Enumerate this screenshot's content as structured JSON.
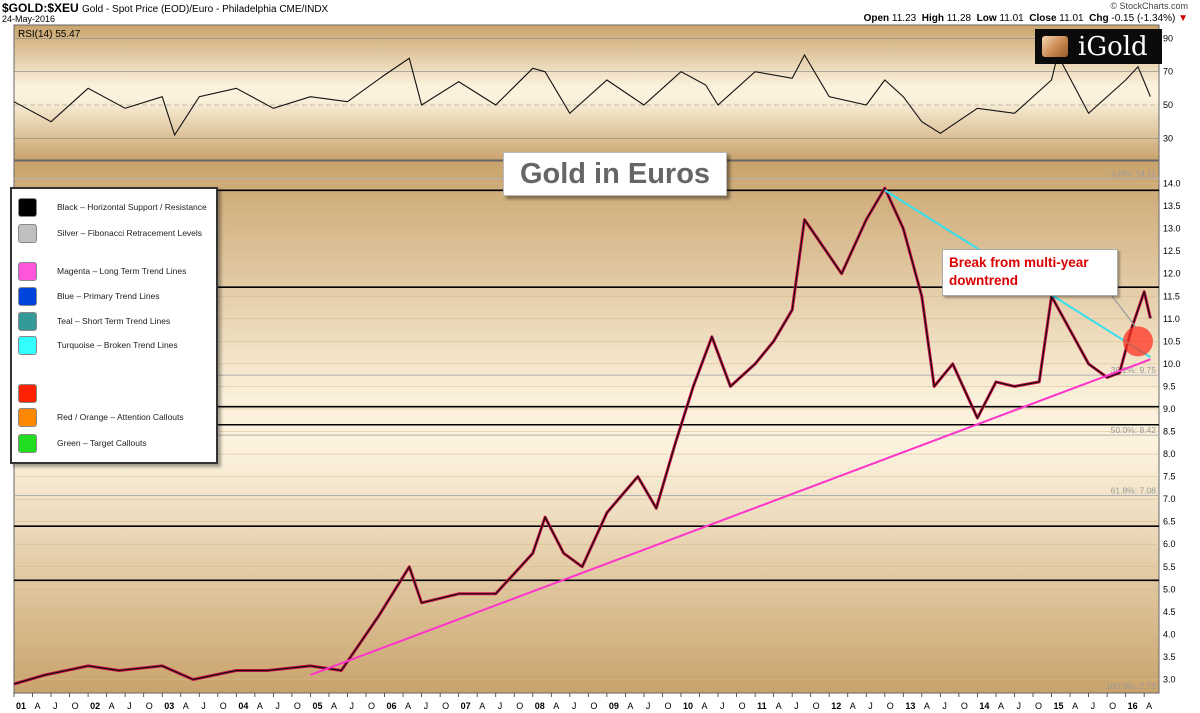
{
  "header": {
    "symbol": "$GOLD:$XEU",
    "description": "Gold - Spot Price (EOD)/Euro - Philadelphia  CME/INDX",
    "date": "24-May-2016",
    "brand": "© StockCharts.com",
    "ohlc": {
      "open_label": "Open",
      "open": "11.23",
      "high_label": "High",
      "high": "11.28",
      "low_label": "Low",
      "low": "11.01",
      "close_label": "Close",
      "close": "11.01",
      "chg_label": "Chg",
      "chg": "-0.15 (-1.34%)"
    }
  },
  "logo": {
    "text": "iGold"
  },
  "chart_title": "Gold in Euros",
  "callout": {
    "line1": "Break from multi-year",
    "line2": "downtrend"
  },
  "legend": [
    {
      "label": "Black – Horizontal Support / Resistance",
      "color": "#000000"
    },
    {
      "label": "Silver – Fibonacci Retracement Levels",
      "color": "#c0c0c0"
    },
    {
      "label": "Magenta – Long Term Trend Lines",
      "color": "#ff55dd"
    },
    {
      "label": "Blue – Primary Trend Lines",
      "color": "#0044dd"
    },
    {
      "label": "Teal – Short Term Trend Lines",
      "color": "#339999"
    },
    {
      "label": "Turquoise – Broken Trend Lines",
      "color": "#33ffff"
    },
    {
      "label": "Red / Orange – Attention Callouts",
      "colors": [
        "#ff2200",
        "#ff8800"
      ]
    },
    {
      "label": "Green – Target Callouts",
      "color": "#22dd22"
    }
  ],
  "chart_data": [
    {
      "type": "line",
      "label": "RSI(14) 55.47",
      "ylim": [
        17,
        98
      ],
      "y_ticks": [
        30,
        50,
        70,
        90
      ],
      "x": [
        "2001-01",
        "2001-07",
        "2002-01",
        "2002-07",
        "2003-01",
        "2003-03",
        "2003-07",
        "2004-01",
        "2004-07",
        "2005-01",
        "2005-07",
        "2006-01",
        "2006-05",
        "2006-07",
        "2007-01",
        "2007-07",
        "2008-01",
        "2008-03",
        "2008-07",
        "2009-01",
        "2009-07",
        "2010-01",
        "2010-05",
        "2010-07",
        "2011-01",
        "2011-07",
        "2011-09",
        "2012-01",
        "2012-07",
        "2012-10",
        "2013-01",
        "2013-04",
        "2013-07",
        "2014-01",
        "2014-07",
        "2015-01",
        "2015-02",
        "2015-07",
        "2016-01",
        "2016-03",
        "2016-05"
      ],
      "values": [
        52,
        40,
        60,
        48,
        55,
        32,
        55,
        60,
        48,
        55,
        52,
        68,
        78,
        50,
        64,
        50,
        72,
        70,
        45,
        65,
        50,
        70,
        62,
        50,
        70,
        66,
        80,
        55,
        50,
        65,
        55,
        40,
        33,
        48,
        45,
        65,
        80,
        45,
        65,
        73,
        55
      ]
    },
    {
      "type": "line",
      "series_kind": "price",
      "ylim": [
        2.7,
        14.5
      ],
      "y_ticks": [
        3.0,
        3.5,
        4.0,
        4.5,
        5.0,
        5.5,
        6.0,
        6.5,
        7.0,
        7.5,
        8.0,
        8.5,
        9.0,
        9.5,
        10.0,
        10.5,
        11.0,
        11.5,
        12.0,
        12.5,
        13.0,
        13.5,
        14.0
      ],
      "x_tick_labels": [
        {
          "date": "2001-01",
          "label": "01",
          "major": true
        },
        {
          "date": "2001-04",
          "label": "A"
        },
        {
          "date": "2001-07",
          "label": "J"
        },
        {
          "date": "2001-10",
          "label": "O"
        },
        {
          "date": "2002-01",
          "label": "02",
          "major": true
        },
        {
          "date": "2002-04",
          "label": "A"
        },
        {
          "date": "2002-07",
          "label": "J"
        },
        {
          "date": "2002-10",
          "label": "O"
        },
        {
          "date": "2003-01",
          "label": "03",
          "major": true
        },
        {
          "date": "2003-04",
          "label": "A"
        },
        {
          "date": "2003-07",
          "label": "J"
        },
        {
          "date": "2003-10",
          "label": "O"
        },
        {
          "date": "2004-01",
          "label": "04",
          "major": true
        },
        {
          "date": "2004-04",
          "label": "A"
        },
        {
          "date": "2004-07",
          "label": "J"
        },
        {
          "date": "2004-10",
          "label": "O"
        },
        {
          "date": "2005-01",
          "label": "05",
          "major": true
        },
        {
          "date": "2005-04",
          "label": "A"
        },
        {
          "date": "2005-07",
          "label": "J"
        },
        {
          "date": "2005-10",
          "label": "O"
        },
        {
          "date": "2006-01",
          "label": "06",
          "major": true
        },
        {
          "date": "2006-04",
          "label": "A"
        },
        {
          "date": "2006-07",
          "label": "J"
        },
        {
          "date": "2006-10",
          "label": "O"
        },
        {
          "date": "2007-01",
          "label": "07",
          "major": true
        },
        {
          "date": "2007-04",
          "label": "A"
        },
        {
          "date": "2007-07",
          "label": "J"
        },
        {
          "date": "2007-10",
          "label": "O"
        },
        {
          "date": "2008-01",
          "label": "08",
          "major": true
        },
        {
          "date": "2008-04",
          "label": "A"
        },
        {
          "date": "2008-07",
          "label": "J"
        },
        {
          "date": "2008-10",
          "label": "O"
        },
        {
          "date": "2009-01",
          "label": "09",
          "major": true
        },
        {
          "date": "2009-04",
          "label": "A"
        },
        {
          "date": "2009-07",
          "label": "J"
        },
        {
          "date": "2009-10",
          "label": "O"
        },
        {
          "date": "2010-01",
          "label": "10",
          "major": true
        },
        {
          "date": "2010-04",
          "label": "A"
        },
        {
          "date": "2010-07",
          "label": "J"
        },
        {
          "date": "2010-10",
          "label": "O"
        },
        {
          "date": "2011-01",
          "label": "11",
          "major": true
        },
        {
          "date": "2011-04",
          "label": "A"
        },
        {
          "date": "2011-07",
          "label": "J"
        },
        {
          "date": "2011-10",
          "label": "O"
        },
        {
          "date": "2012-01",
          "label": "12",
          "major": true
        },
        {
          "date": "2012-04",
          "label": "A"
        },
        {
          "date": "2012-07",
          "label": "J"
        },
        {
          "date": "2012-10",
          "label": "O"
        },
        {
          "date": "2013-01",
          "label": "13",
          "major": true
        },
        {
          "date": "2013-04",
          "label": "A"
        },
        {
          "date": "2013-07",
          "label": "J"
        },
        {
          "date": "2013-10",
          "label": "O"
        },
        {
          "date": "2014-01",
          "label": "14",
          "major": true
        },
        {
          "date": "2014-04",
          "label": "A"
        },
        {
          "date": "2014-07",
          "label": "J"
        },
        {
          "date": "2014-10",
          "label": "O"
        },
        {
          "date": "2015-01",
          "label": "15",
          "major": true
        },
        {
          "date": "2015-04",
          "label": "A"
        },
        {
          "date": "2015-07",
          "label": "J"
        },
        {
          "date": "2015-10",
          "label": "O"
        },
        {
          "date": "2016-01",
          "label": "16",
          "major": true
        },
        {
          "date": "2016-04",
          "label": "A"
        }
      ],
      "x": [
        "2001-01",
        "2001-06",
        "2002-01",
        "2002-06",
        "2003-01",
        "2003-06",
        "2004-01",
        "2004-06",
        "2005-01",
        "2005-06",
        "2005-12",
        "2006-05",
        "2006-07",
        "2007-01",
        "2007-07",
        "2008-01",
        "2008-03",
        "2008-06",
        "2008-09",
        "2009-01",
        "2009-06",
        "2009-09",
        "2009-12",
        "2010-03",
        "2010-06",
        "2010-09",
        "2011-01",
        "2011-04",
        "2011-07",
        "2011-09",
        "2011-11",
        "2012-03",
        "2012-07",
        "2012-10",
        "2013-01",
        "2013-04",
        "2013-06",
        "2013-09",
        "2014-01",
        "2014-04",
        "2014-07",
        "2014-11",
        "2015-01",
        "2015-03",
        "2015-07",
        "2015-10",
        "2015-12",
        "2016-02",
        "2016-04",
        "2016-05"
      ],
      "values": [
        2.9,
        3.1,
        3.3,
        3.2,
        3.3,
        3.0,
        3.2,
        3.2,
        3.3,
        3.2,
        4.4,
        5.5,
        4.7,
        4.9,
        4.9,
        5.8,
        6.6,
        5.8,
        5.5,
        6.7,
        7.5,
        6.8,
        8.2,
        9.5,
        10.6,
        9.5,
        10.0,
        10.5,
        11.2,
        13.2,
        12.8,
        12.0,
        13.2,
        13.9,
        13.0,
        11.5,
        9.5,
        10.0,
        8.8,
        9.6,
        9.5,
        9.6,
        11.5,
        11.0,
        10.0,
        9.7,
        9.8,
        10.8,
        11.6,
        11.01
      ],
      "horizontal_lines": [
        13.85,
        11.7,
        9.05,
        8.65,
        6.4,
        5.2
      ],
      "fibonacci": [
        {
          "label": "0.0%: 14.11",
          "value": 14.11
        },
        {
          "label": "38.2%: 9.75",
          "value": 9.75
        },
        {
          "label": "50.0%: 8.42",
          "value": 8.42
        },
        {
          "label": "61.8%: 7.08",
          "value": 7.08
        },
        {
          "label": "100.0%: 2.73",
          "value": 2.73
        }
      ],
      "trendlines": [
        {
          "kind": "magenta",
          "from": {
            "x": "2005-01",
            "y": 3.1
          },
          "to": {
            "x": "2016-05",
            "y": 10.1
          }
        },
        {
          "kind": "turquoise",
          "from": {
            "x": "2012-10",
            "y": 13.85
          },
          "to": {
            "x": "2016-05",
            "y": 10.15
          }
        }
      ],
      "attention_callout": {
        "x": "2016-03",
        "y": 10.5,
        "color": "#ff3322"
      }
    }
  ]
}
